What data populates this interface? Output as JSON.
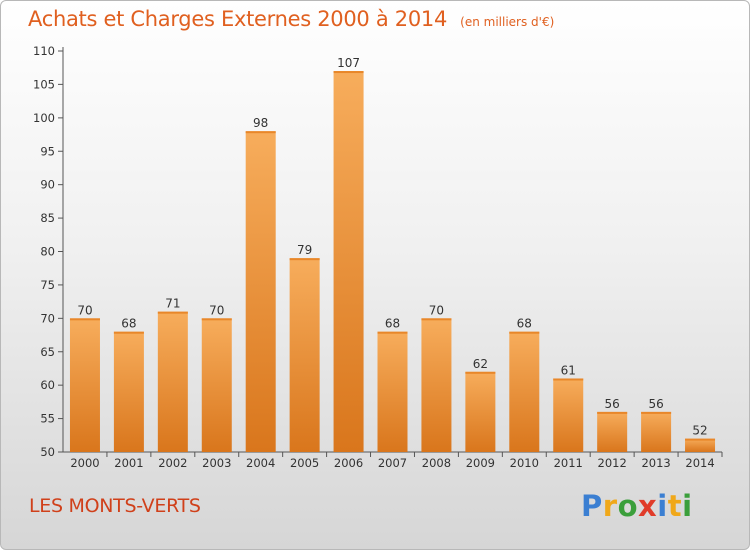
{
  "title": "Achats et Charges Externes 2000 à 2014",
  "unit_label": "(en milliers d'€)",
  "commune": "LES MONTS-VERTS",
  "logo": {
    "letters": [
      "P",
      "r",
      "o",
      "x",
      "i",
      "t",
      "i"
    ],
    "text": "Proxiti"
  },
  "colors": {
    "bar": "#f0912f",
    "bar_light": "#f7ad5c",
    "bar_dark": "#d9761c",
    "title": "#e06020",
    "commune": "#d0401a"
  },
  "chart_data": {
    "type": "bar",
    "title": "Achats et Charges Externes 2000 à 2014",
    "subtitle": "(en milliers d'€)",
    "categories": [
      "2000",
      "2001",
      "2002",
      "2003",
      "2004",
      "2005",
      "2006",
      "2007",
      "2008",
      "2009",
      "2010",
      "2011",
      "2012",
      "2013",
      "2014"
    ],
    "values": [
      70,
      68,
      71,
      70,
      98,
      79,
      107,
      68,
      70,
      62,
      68,
      61,
      56,
      56,
      52
    ],
    "ylim": [
      50,
      110
    ],
    "yticks": [
      50,
      55,
      60,
      65,
      70,
      75,
      80,
      85,
      90,
      95,
      100,
      105,
      110
    ],
    "grid": false,
    "data_labels": true
  }
}
